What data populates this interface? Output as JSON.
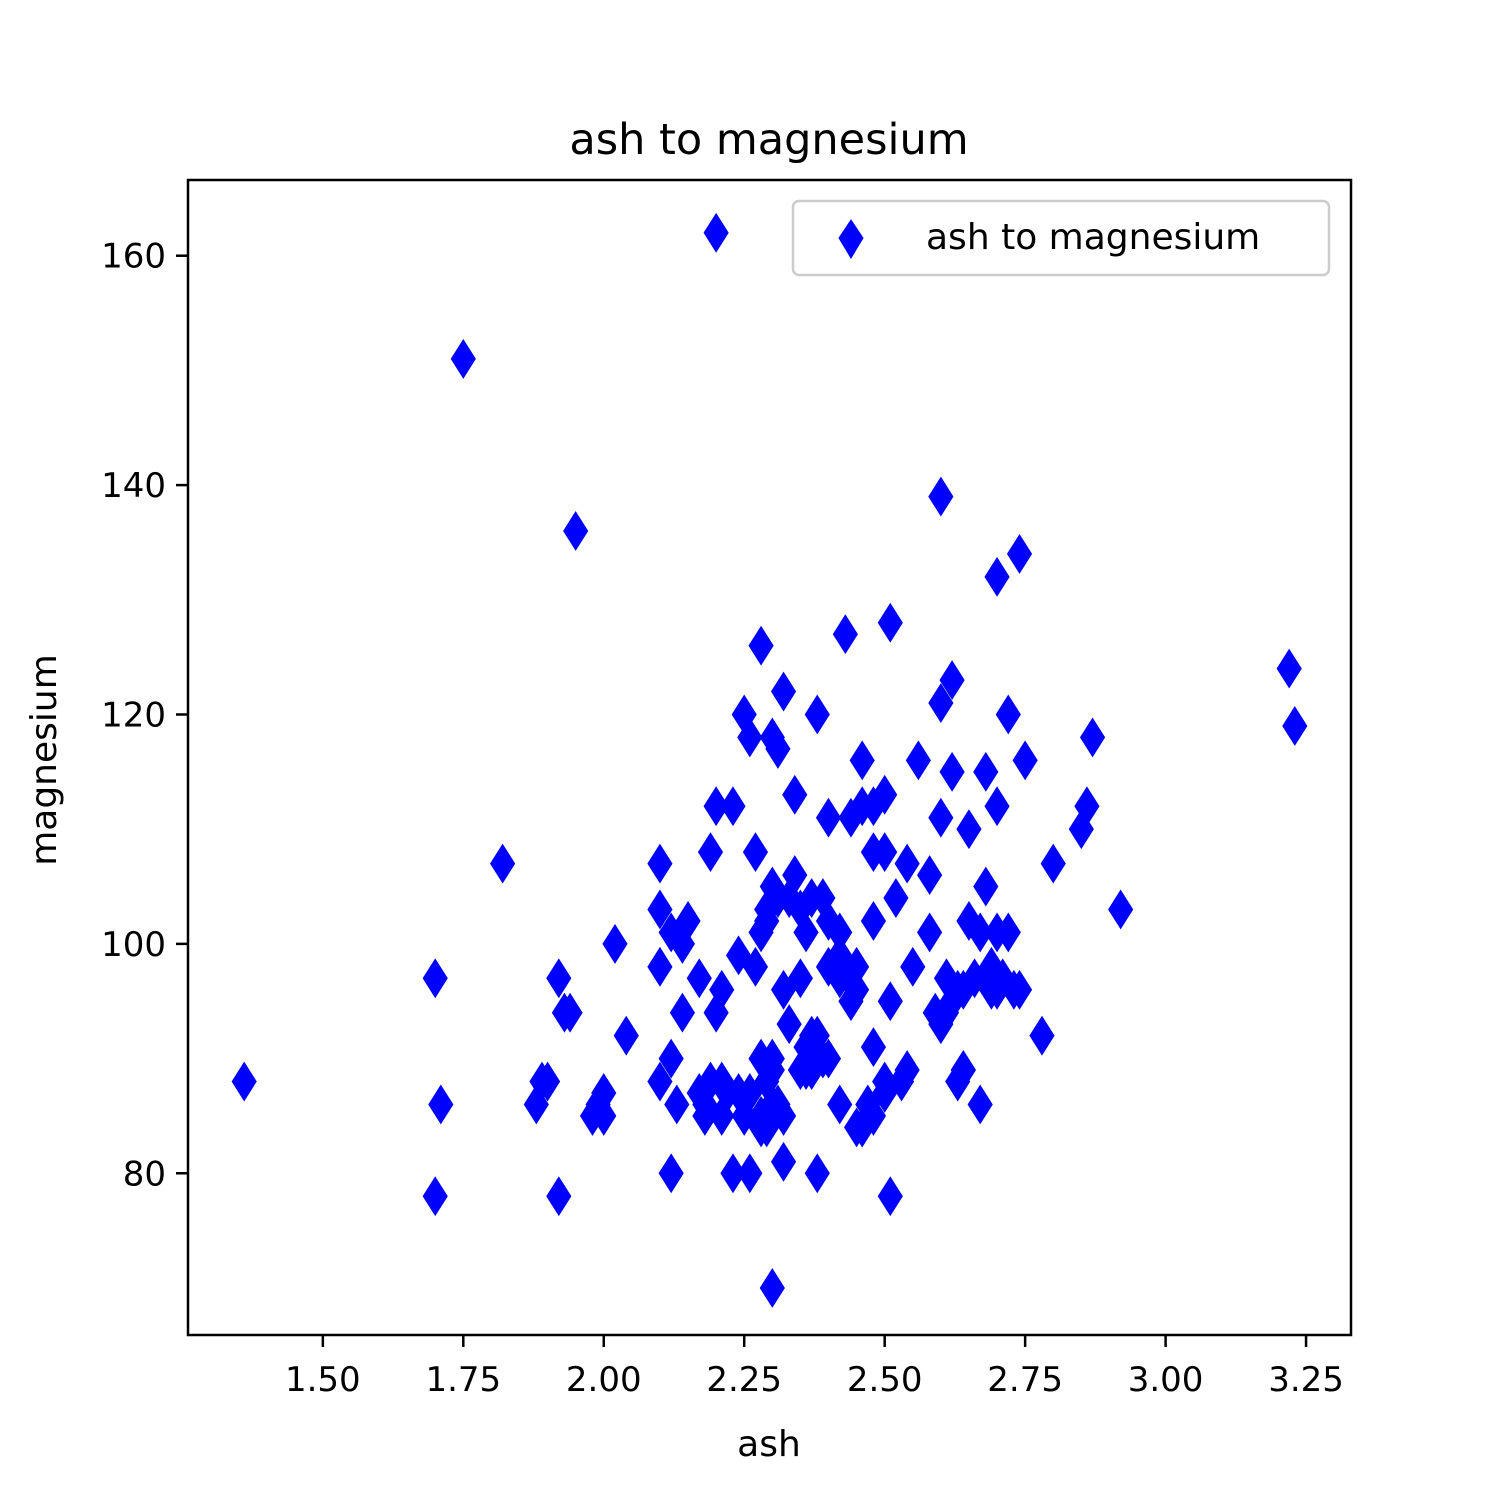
{
  "chart_data": {
    "type": "scatter",
    "title": "ash to magnesium",
    "xlabel": "ash",
    "ylabel": "magnesium",
    "xlim": [
      1.26,
      3.33
    ],
    "ylim": [
      65.9,
      166.6
    ],
    "xticks": [
      "1.50",
      "1.75",
      "2.00",
      "2.25",
      "2.50",
      "2.75",
      "3.00",
      "3.25"
    ],
    "yticks": [
      "80",
      "100",
      "120",
      "140",
      "160"
    ],
    "grid": false,
    "legend_position": "top-right",
    "marker": "thin_diamond",
    "color": "#0000ff",
    "series": [
      {
        "name": "ash to magnesium",
        "x": [
          1.36,
          2.2,
          1.75,
          2.6,
          1.95,
          2.74,
          2.7,
          2.43,
          2.51,
          2.28,
          2.32,
          3.22,
          3.23,
          2.62,
          2.6,
          2.25,
          2.26,
          2.38,
          2.72,
          2.3,
          2.31,
          2.87,
          2.46,
          2.56,
          2.75,
          2.62,
          2.68,
          2.34,
          2.5,
          2.7,
          2.2,
          2.23,
          2.4,
          2.46,
          2.48,
          2.44,
          2.86,
          2.85,
          2.65,
          2.6,
          2.48,
          2.5,
          2.1,
          2.19,
          2.27,
          2.54,
          2.58,
          2.34,
          1.82,
          2.8,
          2.3,
          2.31,
          2.1,
          2.15,
          2.52,
          2.68,
          2.92,
          2.37,
          2.29,
          2.39,
          2.4,
          2.36,
          2.12,
          2.14,
          2.65,
          2.7,
          2.72,
          2.67,
          2.48,
          2.35,
          2.02,
          2.28,
          2.4,
          2.58,
          2.42,
          2.55,
          2.1,
          2.27,
          2.24,
          2.45,
          1.7,
          1.92,
          2.17,
          2.21,
          2.32,
          2.63,
          2.71,
          2.42,
          2.7,
          2.51,
          2.74,
          1.93,
          2.14,
          2.62,
          2.59,
          2.04,
          1.94,
          2.6,
          2.78,
          2.37,
          2.38,
          2.12,
          2.48,
          2.54,
          2.35,
          2.3,
          2.64,
          2.1,
          2.21,
          1.9,
          2.17,
          2.29,
          2.24,
          2.5,
          1.71,
          2.0,
          1.99,
          2.13,
          2.26,
          2.31,
          2.42,
          2.67,
          2.28,
          1.88,
          2.18,
          2.3,
          2.25,
          2.45,
          2.63,
          2.33,
          2.39,
          2.28,
          2.5,
          2.53,
          2.3,
          2.36,
          2.46,
          2.4,
          2.48,
          2.32,
          1.98,
          2.12,
          2.23,
          2.26,
          2.32,
          2.38,
          1.7,
          1.92,
          2.51,
          2.3,
          2.28,
          2.21,
          2.64,
          2.44,
          2.61,
          2.66,
          2.69,
          2.73,
          2.69,
          2.35,
          2.41,
          2.19,
          2.22,
          2.46,
          2.36,
          2.37,
          1.89,
          2.2,
          2.0,
          2.29,
          2.42,
          2.29,
          2.45,
          2.33,
          2.61,
          2.64,
          2.18,
          2.47
        ],
        "y": [
          88,
          162,
          151,
          139,
          136,
          134,
          132,
          127,
          128,
          126,
          122,
          124,
          119,
          123,
          121,
          120,
          118,
          120,
          120,
          118,
          117,
          118,
          116,
          116,
          116,
          115,
          115,
          113,
          113,
          112,
          112,
          112,
          111,
          112,
          112,
          111,
          112,
          110,
          110,
          111,
          108,
          108,
          107,
          108,
          108,
          107,
          106,
          106,
          107,
          107,
          105,
          104,
          103,
          102,
          104,
          105,
          103,
          104,
          103,
          104,
          102,
          101,
          101,
          100,
          102,
          101,
          101,
          101,
          102,
          103,
          100,
          101,
          98,
          101,
          99,
          98,
          98,
          98,
          99,
          98,
          97,
          97,
          97,
          96,
          96,
          96,
          97,
          97,
          96,
          95,
          96,
          94,
          94,
          95,
          94,
          92,
          94,
          93,
          92,
          92,
          92,
          90,
          91,
          89,
          89,
          90,
          89,
          88,
          88,
          88,
          87,
          88,
          87,
          88,
          86,
          87,
          86,
          86,
          87,
          86,
          86,
          86,
          85,
          86,
          86,
          86,
          85,
          84,
          88,
          93,
          90,
          90,
          87,
          88,
          89,
          89,
          84,
          90,
          85,
          85,
          85,
          80,
          80,
          80,
          81,
          80,
          78,
          78,
          78,
          70,
          84,
          85,
          96,
          95,
          94,
          97,
          96,
          96,
          98,
          97,
          98,
          88,
          87,
          84,
          91,
          89,
          88,
          94,
          85,
          102,
          101,
          84,
          96,
          104,
          97,
          89,
          85,
          86
        ]
      }
    ]
  }
}
